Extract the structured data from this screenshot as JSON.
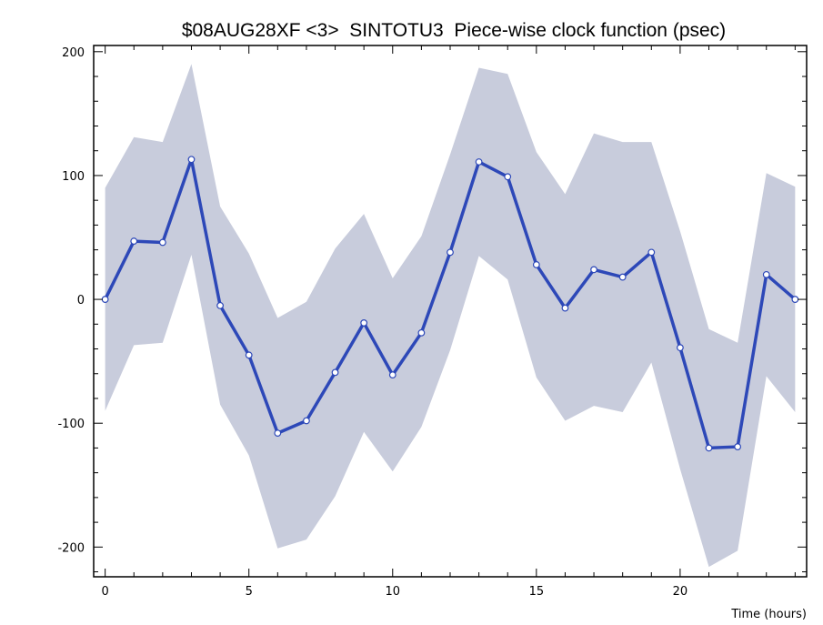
{
  "chart_data": {
    "type": "line",
    "title": "$08AUG28XF <3>  SINTOTU3  Piece-wise clock function (psec)",
    "xlabel": "Time (hours)",
    "ylabel": "",
    "xlim": [
      -0.4,
      24.4
    ],
    "ylim": [
      -224,
      205
    ],
    "x_ticks": [
      0,
      5,
      10,
      15,
      20
    ],
    "y_ticks": [
      -200,
      -100,
      0,
      100,
      200
    ],
    "grid": false,
    "colors": {
      "line": "#2d48b8",
      "band": "#c8ccdc",
      "marker_fill": "#ffffff"
    },
    "series": [
      {
        "x": [
          0,
          1,
          2,
          3,
          4,
          5,
          6,
          7,
          8,
          9,
          10,
          11,
          12,
          13,
          14,
          15,
          16,
          17,
          18,
          19,
          20,
          21,
          22,
          23,
          24
        ],
        "y": [
          0,
          47,
          46,
          113,
          -5,
          -45,
          -108,
          -98,
          -59,
          -19,
          -61,
          -27,
          38,
          111,
          99,
          28,
          -7,
          24,
          18,
          38,
          -39,
          -120,
          -119,
          20,
          0
        ],
        "upper": [
          90,
          131,
          127,
          190,
          75,
          37,
          -15,
          -2,
          41,
          69,
          17,
          51,
          117,
          187,
          182,
          119,
          85,
          134,
          127,
          127,
          55,
          -24,
          -35,
          102,
          91
        ],
        "lower": [
          -90,
          -37,
          -35,
          36,
          -85,
          -126,
          -201,
          -194,
          -159,
          -107,
          -139,
          -103,
          -41,
          35,
          16,
          -63,
          -98,
          -86,
          -91,
          -51,
          -137,
          -216,
          -203,
          -62,
          -91
        ]
      }
    ]
  }
}
